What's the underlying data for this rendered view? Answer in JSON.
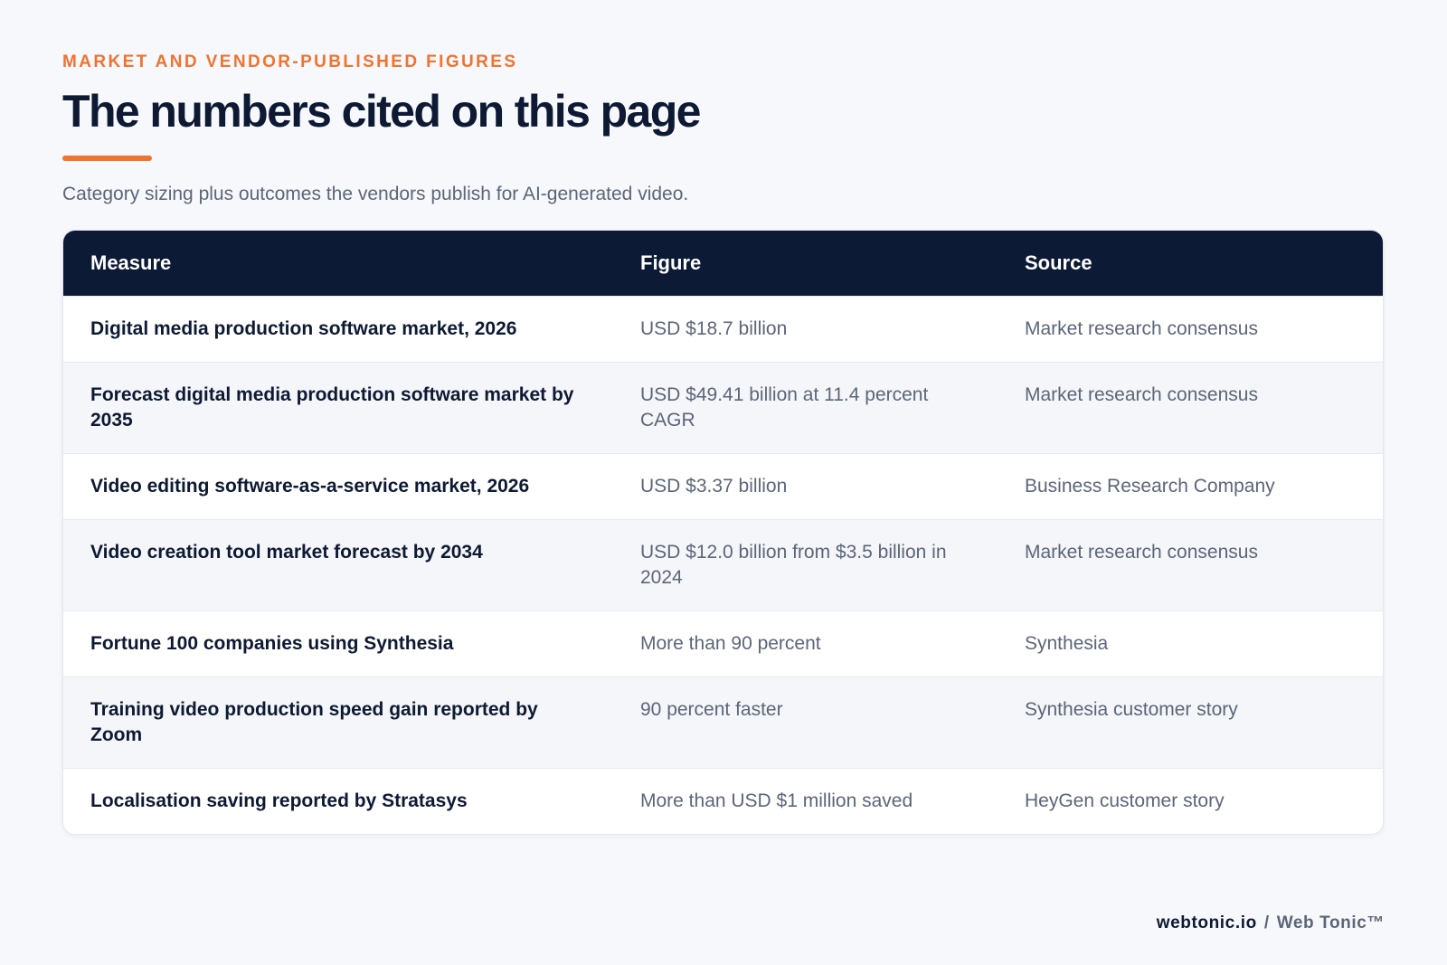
{
  "header": {
    "eyebrow": "MARKET AND VENDOR-PUBLISHED FIGURES",
    "title": "The numbers cited on this page",
    "subtitle": "Category sizing plus outcomes the vendors publish for AI-generated video."
  },
  "table": {
    "columns": [
      "Measure",
      "Figure",
      "Source"
    ],
    "rows": [
      {
        "measure": "Digital media production software market, 2026",
        "figure": "USD $18.7 billion",
        "source": "Market research consensus"
      },
      {
        "measure": "Forecast digital media production software market by 2035",
        "figure": "USD $49.41 billion at 11.4 percent CAGR",
        "source": "Market research consensus"
      },
      {
        "measure": "Video editing software-as-a-service market, 2026",
        "figure": "USD $3.37 billion",
        "source": "Business Research Company"
      },
      {
        "measure": "Video creation tool market forecast by 2034",
        "figure": "USD $12.0 billion from $3.5 billion in 2024",
        "source": "Market research consensus"
      },
      {
        "measure": "Fortune 100 companies using Synthesia",
        "figure": "More than 90 percent",
        "source": "Synthesia"
      },
      {
        "measure": "Training video production speed gain reported by Zoom",
        "figure": "90 percent faster",
        "source": "Synthesia customer story"
      },
      {
        "measure": "Localisation saving reported by Stratasys",
        "figure": "More than USD $1 million saved",
        "source": "HeyGen customer story"
      }
    ]
  },
  "footer": {
    "domain": "webtonic.io",
    "separator": "/",
    "brand": "Web Tonic™"
  },
  "colors": {
    "accent": "#ef7331",
    "header_bg": "#0c1a35",
    "text_dark": "#0e1a33",
    "text_muted": "#5c6678",
    "page_bg": "#f6f8fb"
  }
}
